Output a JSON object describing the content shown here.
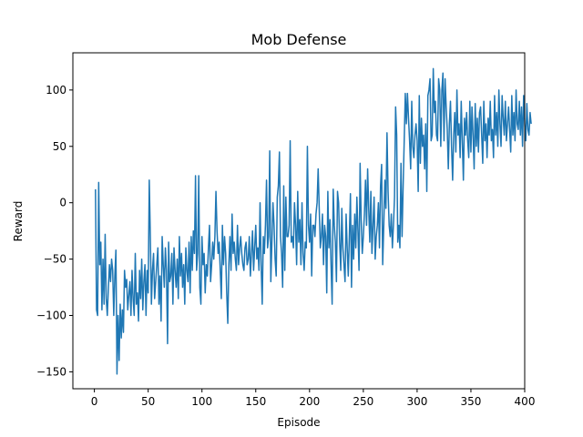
{
  "chart_data": {
    "type": "line",
    "title": "Mob Defense",
    "xlabel": "Episode",
    "ylabel": "Reward",
    "xlim": [
      -20,
      400
    ],
    "ylim": [
      -165,
      133
    ],
    "xticks": [
      0,
      50,
      100,
      150,
      200,
      250,
      300,
      350,
      400
    ],
    "yticks": [
      -150,
      -100,
      -50,
      0,
      50,
      100
    ],
    "grid": false,
    "series": [
      {
        "color": "#1f77b4",
        "x_start": 1,
        "x_step": 1,
        "values": [
          12,
          -95,
          -100,
          18,
          -55,
          -35,
          -95,
          -50,
          -90,
          -28,
          -85,
          -100,
          -75,
          -55,
          -70,
          -50,
          -60,
          -100,
          -65,
          -42,
          -152,
          -100,
          -140,
          -90,
          -120,
          -95,
          -115,
          -60,
          -75,
          -68,
          -95,
          -82,
          -70,
          -100,
          -60,
          -85,
          -100,
          -45,
          -90,
          -80,
          -105,
          -60,
          -85,
          -50,
          -95,
          -70,
          -55,
          -100,
          -60,
          -80,
          20,
          -30,
          -90,
          -60,
          -45,
          -85,
          -70,
          -55,
          -40,
          -90,
          -65,
          -105,
          -30,
          -55,
          -75,
          -40,
          -60,
          -125,
          -35,
          -70,
          -65,
          -45,
          -90,
          -40,
          -60,
          -75,
          -50,
          -85,
          -30,
          -65,
          -45,
          -75,
          -55,
          -90,
          -40,
          -60,
          -70,
          -35,
          -80,
          -30,
          -60,
          -25,
          -45,
          24,
          -60,
          -45,
          24,
          -75,
          -90,
          -30,
          -55,
          -45,
          -80,
          -55,
          -65,
          -40,
          -20,
          -70,
          -55,
          -35,
          -50,
          -30,
          10,
          -25,
          -45,
          -35,
          -60,
          -85,
          -20,
          -55,
          -30,
          -45,
          -80,
          -107,
          -55,
          -30,
          -60,
          -10,
          -45,
          -35,
          -50,
          -60,
          -20,
          -55,
          -40,
          -30,
          -45,
          -55,
          -60,
          -40,
          -35,
          -55,
          -50,
          -30,
          -65,
          -45,
          -25,
          -60,
          -40,
          -20,
          -50,
          -40,
          -60,
          0,
          -55,
          -90,
          -30,
          -45,
          -20,
          20,
          -40,
          -30,
          46,
          -70,
          -35,
          0,
          -20,
          -50,
          -65,
          5,
          15,
          45,
          -30,
          -45,
          -75,
          15,
          -60,
          5,
          -30,
          -30,
          -20,
          55,
          -35,
          -30,
          -40,
          0,
          -20,
          -55,
          10,
          -35,
          -15,
          -55,
          0,
          -45,
          -60,
          -35,
          -40,
          50,
          -20,
          -35,
          -10,
          -65,
          -20,
          -20,
          -30,
          -10,
          0,
          30,
          -5,
          -40,
          -30,
          -10,
          -55,
          -20,
          -30,
          -80,
          10,
          -40,
          -15,
          -55,
          -90,
          12,
          -20,
          -35,
          -70,
          10,
          0,
          -35,
          -60,
          -5,
          -40,
          -55,
          -70,
          -10,
          -40,
          -65,
          -30,
          8,
          -75,
          -20,
          -50,
          -10,
          -40,
          5,
          -25,
          -60,
          35,
          -15,
          -45,
          -30,
          -10,
          20,
          -20,
          30,
          -5,
          -35,
          10,
          -45,
          -20,
          5,
          -50,
          -30,
          -20,
          0,
          -40,
          15,
          34,
          -55,
          -20,
          20,
          -5,
          62,
          10,
          -20,
          -30,
          -10,
          -40,
          -20,
          5,
          85,
          60,
          -35,
          -20,
          -40,
          35,
          -30,
          15,
          55,
          97,
          70,
          97,
          75,
          55,
          30,
          90,
          50,
          40,
          60,
          70,
          55,
          10,
          95,
          35,
          75,
          50,
          60,
          30,
          70,
          10,
          95,
          100,
          110,
          55,
          60,
          119,
          80,
          90,
          60,
          55,
          110,
          100,
          50,
          100,
          115,
          55,
          110,
          85,
          65,
          30,
          70,
          90,
          50,
          20,
          60,
          80,
          45,
          100,
          60,
          70,
          40,
          90,
          55,
          20,
          75,
          60,
          80,
          55,
          40,
          90,
          45,
          85,
          60,
          30,
          88,
          50,
          75,
          45,
          80,
          85,
          60,
          35,
          90,
          55,
          70,
          40,
          75,
          60,
          90,
          55,
          65,
          40,
          95,
          60,
          80,
          50,
          100,
          70,
          50,
          95,
          75,
          60,
          90,
          55,
          70,
          85,
          65,
          45,
          95,
          60,
          80,
          55,
          100,
          70,
          65,
          90,
          60,
          85,
          50,
          95,
          70,
          55,
          88,
          65,
          60,
          80,
          70
        ]
      }
    ]
  }
}
